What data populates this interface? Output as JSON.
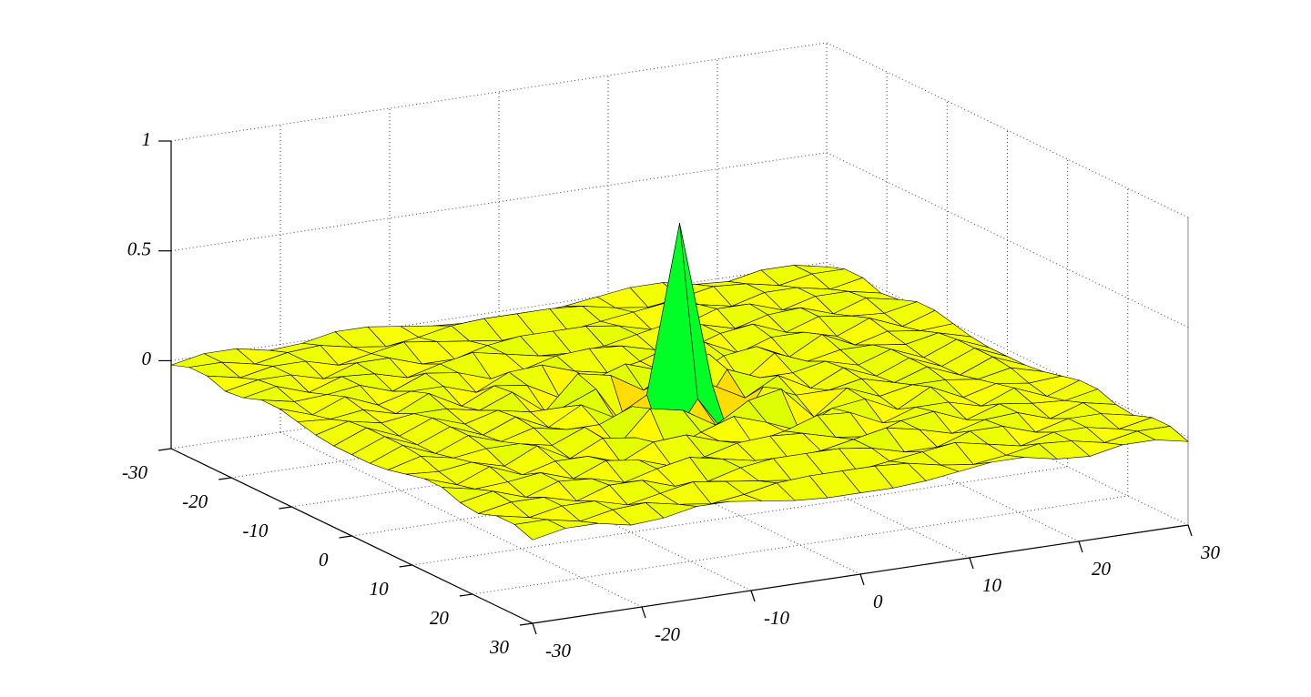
{
  "chart_data": {
    "type": "surface",
    "x": [
      -30,
      -27,
      -24,
      -21,
      -18,
      -15,
      -12,
      -9,
      -6,
      -3,
      0,
      3,
      6,
      9,
      12,
      15,
      18,
      21,
      24,
      27,
      30
    ],
    "y": [
      -30,
      -27,
      -24,
      -21,
      -18,
      -15,
      -12,
      -9,
      -6,
      -3,
      0,
      3,
      6,
      9,
      12,
      15,
      18,
      21,
      24,
      27,
      30
    ],
    "z": [
      [
        -0.02,
        0.01,
        0.01,
        -0.02,
        -0.01,
        0.02,
        0.02,
        0,
        -0.02,
        -0.03,
        -0.03,
        -0.03,
        -0.02,
        0,
        0.02,
        0.02,
        -0.01,
        -0.02,
        0.01,
        0.01,
        -0.02
      ],
      [
        0.01,
        0.01,
        -0.02,
        0.01,
        0.02,
        -0.01,
        -0.03,
        -0.01,
        0.02,
        0.03,
        0.03,
        0.03,
        0.02,
        -0.01,
        -0.03,
        -0.01,
        0.02,
        0.01,
        -0.02,
        0.01,
        0.01
      ],
      [
        0.01,
        -0.02,
        0.01,
        0.01,
        -0.03,
        0,
        0.03,
        0.01,
        -0.01,
        -0.03,
        -0.03,
        -0.03,
        -0.01,
        0.01,
        0.03,
        0,
        -0.03,
        0.01,
        0.01,
        -0.02,
        0.01
      ],
      [
        -0.02,
        0.01,
        0.01,
        -0.03,
        0.02,
        0.02,
        -0.03,
        -0.03,
        0.01,
        0.03,
        0.03,
        0.03,
        0.01,
        -0.03,
        -0.03,
        0.02,
        0.02,
        -0.03,
        0.01,
        0.01,
        -0.02
      ],
      [
        -0.01,
        0.02,
        -0.03,
        0.02,
        0.01,
        -0.03,
        0.01,
        0.04,
        0.01,
        -0.02,
        -0.03,
        -0.02,
        0.01,
        0.04,
        0.01,
        -0.03,
        0.01,
        0.02,
        -0.03,
        0.02,
        -0.01
      ],
      [
        0.02,
        -0.01,
        0,
        0.02,
        -0.03,
        0.03,
        0.01,
        -0.04,
        -0.02,
        0.02,
        0.03,
        0.02,
        -0.02,
        -0.04,
        0.01,
        0.03,
        -0.03,
        0.02,
        0,
        -0.01,
        0.02
      ],
      [
        0.02,
        -0.03,
        0.03,
        -0.03,
        0.01,
        0.01,
        -0.04,
        0.03,
        0.04,
        -0.01,
        -0.04,
        -0.01,
        0.04,
        0.03,
        -0.04,
        0.01,
        0.01,
        -0.03,
        0.03,
        -0.03,
        0.02
      ],
      [
        0,
        -0.01,
        0.01,
        -0.03,
        0.04,
        -0.04,
        0.03,
        0.01,
        -0.07,
        -0.01,
        0.04,
        -0.01,
        -0.07,
        0.01,
        0.03,
        -0.04,
        0.04,
        -0.03,
        0.01,
        -0.01,
        0
      ],
      [
        -0.02,
        0.02,
        -0.01,
        0.01,
        0.01,
        -0.02,
        0.04,
        -0.07,
        0.08,
        0.05,
        -0.04,
        0.05,
        0.08,
        -0.07,
        0.04,
        -0.02,
        0.01,
        0.01,
        -0.01,
        0.02,
        -0.02
      ],
      [
        -0.03,
        0.03,
        -0.03,
        0.03,
        -0.02,
        0.02,
        -0.01,
        -0.01,
        0.05,
        -0.17,
        0.04,
        -0.17,
        0.05,
        -0.01,
        -0.01,
        0.02,
        -0.02,
        0.03,
        -0.03,
        0.03,
        -0.03
      ],
      [
        -0.03,
        0.03,
        -0.03,
        0.03,
        -0.03,
        0.03,
        -0.04,
        0.04,
        -0.04,
        0.04,
        0.8,
        0.04,
        -0.04,
        0.04,
        -0.04,
        0.03,
        -0.03,
        0.03,
        -0.03,
        0.03,
        -0.03
      ],
      [
        -0.03,
        0.03,
        -0.03,
        0.03,
        -0.02,
        0.02,
        -0.01,
        -0.01,
        0.05,
        -0.17,
        0.04,
        -0.17,
        0.05,
        -0.01,
        -0.01,
        0.02,
        -0.02,
        0.03,
        -0.03,
        0.03,
        -0.03
      ],
      [
        -0.02,
        0.02,
        -0.01,
        0.01,
        0.01,
        -0.02,
        0.04,
        -0.07,
        0.08,
        0.05,
        -0.04,
        0.05,
        0.08,
        -0.07,
        0.04,
        -0.02,
        0.01,
        0.01,
        -0.01,
        0.02,
        -0.02
      ],
      [
        0,
        -0.01,
        0.01,
        -0.03,
        0.04,
        -0.04,
        0.03,
        0.01,
        -0.07,
        -0.01,
        0.04,
        -0.01,
        -0.07,
        0.01,
        0.03,
        -0.04,
        0.04,
        -0.03,
        0.01,
        -0.01,
        0
      ],
      [
        0.02,
        -0.03,
        0.03,
        -0.03,
        0.01,
        0.01,
        -0.04,
        0.03,
        0.04,
        -0.01,
        -0.04,
        -0.01,
        0.04,
        0.03,
        -0.04,
        0.01,
        0.01,
        -0.03,
        0.03,
        -0.03,
        0.02
      ],
      [
        0.02,
        -0.01,
        0,
        0.02,
        -0.03,
        0.03,
        0.01,
        -0.04,
        -0.02,
        0.02,
        0.03,
        0.02,
        -0.02,
        -0.04,
        0.01,
        0.03,
        -0.03,
        0.02,
        0,
        -0.01,
        0.02
      ],
      [
        -0.01,
        0.02,
        -0.03,
        0.02,
        0.01,
        -0.03,
        0.01,
        0.04,
        0.01,
        -0.02,
        -0.03,
        -0.02,
        0.01,
        0.04,
        0.01,
        -0.03,
        0.01,
        0.02,
        -0.03,
        0.02,
        -0.01
      ],
      [
        -0.02,
        0.01,
        0.01,
        -0.03,
        0.02,
        0.02,
        -0.03,
        -0.03,
        0.01,
        0.03,
        0.03,
        0.03,
        0.01,
        -0.03,
        -0.03,
        0.02,
        0.02,
        -0.03,
        0.01,
        0.01,
        -0.02
      ],
      [
        0.01,
        -0.02,
        0.01,
        0.01,
        -0.03,
        0,
        0.03,
        0.01,
        -0.01,
        -0.03,
        -0.03,
        -0.03,
        -0.01,
        0.01,
        0.03,
        0,
        -0.03,
        0.01,
        0.01,
        -0.02,
        0.01
      ],
      [
        0.01,
        0.01,
        -0.02,
        0.01,
        0.02,
        -0.01,
        -0.03,
        -0.01,
        0.02,
        0.03,
        0.03,
        0.03,
        0.02,
        -0.01,
        -0.03,
        -0.01,
        0.02,
        0.01,
        -0.02,
        0.01,
        0.01
      ],
      [
        -0.02,
        0.01,
        0.01,
        -0.02,
        -0.01,
        0.02,
        0.02,
        0,
        -0.02,
        -0.03,
        -0.03,
        -0.03,
        -0.02,
        0,
        0.02,
        0.02,
        -0.01,
        -0.02,
        0.01,
        0.01,
        -0.02
      ]
    ],
    "xlim": [
      -30,
      30
    ],
    "ylim": [
      -30,
      30
    ],
    "zlim": [
      -0.4,
      1
    ],
    "xticks": [
      -30,
      -20,
      -10,
      0,
      10,
      20,
      30
    ],
    "yticks": [
      -30,
      -20,
      -10,
      0,
      10,
      20,
      30
    ],
    "zticks": [
      0,
      0.5,
      1
    ],
    "grid": true,
    "colormap": "hsv",
    "edgecolor": "#000000"
  }
}
